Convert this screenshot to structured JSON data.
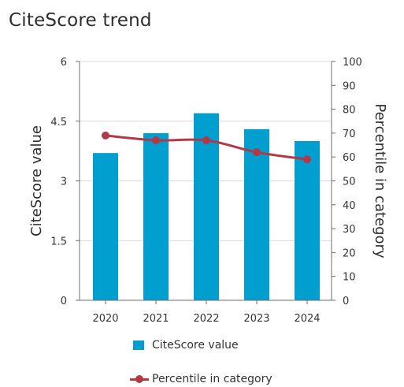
{
  "title": "CiteScore trend",
  "colors": {
    "bar": "#009fcf",
    "line": "#b23a48",
    "grid": "#d9d9d9",
    "axis": "#6e6e6e"
  },
  "legend": {
    "bar_label": "CiteScore value",
    "line_label": "Percentile in category"
  },
  "chart_data": {
    "type": "bar+line",
    "title": "CiteScore trend",
    "categories": [
      "2020",
      "2021",
      "2022",
      "2023",
      "2024"
    ],
    "series": [
      {
        "name": "CiteScore value",
        "type": "bar",
        "axis": "left",
        "values": [
          3.7,
          4.2,
          4.7,
          4.3,
          4.0
        ]
      },
      {
        "name": "Percentile in category",
        "type": "line",
        "axis": "right",
        "values": [
          69,
          67,
          67,
          62,
          59
        ]
      }
    ],
    "ylabel_left": "CiteScore value",
    "ylabel_right": "Percentile in category",
    "ylim_left": [
      0,
      6
    ],
    "ylim_right": [
      0,
      100
    ],
    "yticks_left": [
      "0",
      "1.5",
      "3",
      "4.5",
      "6"
    ],
    "yticks_right": [
      "0",
      "10",
      "20",
      "30",
      "40",
      "50",
      "60",
      "70",
      "80",
      "90",
      "100"
    ],
    "grid": true,
    "legend_position": "bottom"
  }
}
